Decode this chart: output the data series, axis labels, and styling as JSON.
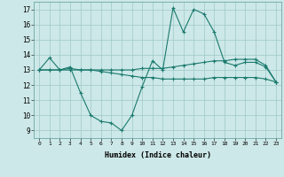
{
  "background_color": "#cde8e8",
  "grid_color": "#9ec8c8",
  "line_color": "#1a7a6e",
  "xlabel": "Humidex (Indice chaleur)",
  "xlim": [
    -0.5,
    23.5
  ],
  "ylim": [
    8.5,
    17.5
  ],
  "xticks": [
    0,
    1,
    2,
    3,
    4,
    5,
    6,
    7,
    8,
    9,
    10,
    11,
    12,
    13,
    14,
    15,
    16,
    17,
    18,
    19,
    20,
    21,
    22,
    23
  ],
  "yticks": [
    9,
    10,
    11,
    12,
    13,
    14,
    15,
    16,
    17
  ],
  "series1": [
    13.0,
    13.8,
    13.0,
    13.2,
    11.5,
    10.0,
    9.6,
    9.5,
    9.0,
    10.0,
    11.9,
    13.6,
    13.0,
    17.1,
    15.5,
    17.0,
    16.7,
    15.5,
    13.5,
    13.3,
    13.5,
    13.5,
    13.2,
    12.2
  ],
  "series2": [
    13.0,
    13.0,
    13.0,
    13.1,
    13.0,
    13.0,
    13.0,
    13.0,
    13.0,
    13.0,
    13.1,
    13.1,
    13.1,
    13.2,
    13.3,
    13.4,
    13.5,
    13.6,
    13.6,
    13.7,
    13.7,
    13.7,
    13.3,
    12.2
  ],
  "series3": [
    13.0,
    13.0,
    13.0,
    13.0,
    13.0,
    13.0,
    12.9,
    12.8,
    12.7,
    12.6,
    12.5,
    12.5,
    12.4,
    12.4,
    12.4,
    12.4,
    12.4,
    12.5,
    12.5,
    12.5,
    12.5,
    12.5,
    12.4,
    12.2
  ]
}
